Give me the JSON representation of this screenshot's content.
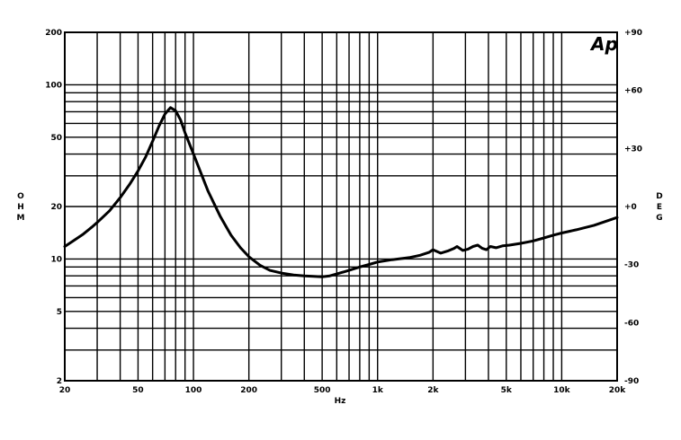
{
  "chart_data": {
    "type": "line",
    "logo_text": "Ap",
    "xlabel": "Hz",
    "ylabel_left": [
      "O",
      "H",
      "M"
    ],
    "ylabel_right": [
      "D",
      "E",
      "G"
    ],
    "x_scale": "log",
    "y_scale": "log",
    "xlim": [
      20,
      20000
    ],
    "ylim": [
      2,
      200
    ],
    "y2lim": [
      -90,
      90
    ],
    "grid": true,
    "x_tick_labels": [
      {
        "value": 20,
        "label": "20"
      },
      {
        "value": 50,
        "label": "50"
      },
      {
        "value": 100,
        "label": "100"
      },
      {
        "value": 200,
        "label": "200"
      },
      {
        "value": 500,
        "label": "500"
      },
      {
        "value": 1000,
        "label": "1k"
      },
      {
        "value": 2000,
        "label": "2k"
      },
      {
        "value": 5000,
        "label": "5k"
      },
      {
        "value": 10000,
        "label": "10k"
      },
      {
        "value": 20000,
        "label": "20k"
      }
    ],
    "y_tick_labels": [
      {
        "value": 200,
        "label": "200"
      },
      {
        "value": 100,
        "label": "100"
      },
      {
        "value": 50,
        "label": "50"
      },
      {
        "value": 20,
        "label": "20"
      },
      {
        "value": 10,
        "label": "10"
      },
      {
        "value": 5,
        "label": "5"
      },
      {
        "value": 2,
        "label": "2"
      }
    ],
    "y2_tick_labels": [
      {
        "value": 90,
        "label": "+90"
      },
      {
        "value": 60,
        "label": "+60"
      },
      {
        "value": 30,
        "label": "+30"
      },
      {
        "value": 0,
        "label": "+0"
      },
      {
        "value": -30,
        "label": "-30"
      },
      {
        "value": -60,
        "label": "-60"
      },
      {
        "value": -90,
        "label": "-90"
      }
    ],
    "x_grid": [
      20,
      30,
      40,
      50,
      60,
      70,
      80,
      90,
      100,
      200,
      300,
      400,
      500,
      600,
      700,
      800,
      900,
      1000,
      2000,
      3000,
      4000,
      5000,
      6000,
      7000,
      8000,
      9000,
      10000,
      20000
    ],
    "y_grid": [
      2,
      3,
      4,
      5,
      6,
      7,
      8,
      9,
      10,
      20,
      30,
      40,
      50,
      60,
      70,
      80,
      90,
      100,
      200
    ],
    "series": [
      {
        "color": "#000000",
        "x": [
          20,
          22,
          25,
          28,
          30,
          35,
          40,
          45,
          50,
          55,
          60,
          65,
          70,
          75,
          80,
          85,
          90,
          100,
          110,
          120,
          140,
          160,
          180,
          200,
          230,
          260,
          300,
          350,
          400,
          450,
          500,
          550,
          600,
          700,
          800,
          900,
          1000,
          1200,
          1500,
          1700,
          1900,
          2000,
          2200,
          2400,
          2600,
          2700,
          2900,
          3100,
          3300,
          3500,
          3700,
          3900,
          4100,
          4400,
          4800,
          5200,
          6000,
          7000,
          8000,
          9000,
          10000,
          12000,
          15000,
          20000
        ],
        "y": [
          11.8,
          12.6,
          13.8,
          15.2,
          16.2,
          18.9,
          22.5,
          26.8,
          32,
          38.5,
          47.5,
          58,
          68,
          74,
          71,
          63,
          53,
          40,
          31,
          24.5,
          17.5,
          13.7,
          11.6,
          10.3,
          9.2,
          8.6,
          8.3,
          8.1,
          8.0,
          7.95,
          7.9,
          8.0,
          8.2,
          8.6,
          9.0,
          9.3,
          9.6,
          9.9,
          10.2,
          10.5,
          10.9,
          11.3,
          10.8,
          11.1,
          11.5,
          11.8,
          11.2,
          11.4,
          11.8,
          12.0,
          11.5,
          11.3,
          11.8,
          11.6,
          11.9,
          12.0,
          12.3,
          12.7,
          13.2,
          13.7,
          14.1,
          14.7,
          15.6,
          17.3
        ]
      }
    ]
  }
}
